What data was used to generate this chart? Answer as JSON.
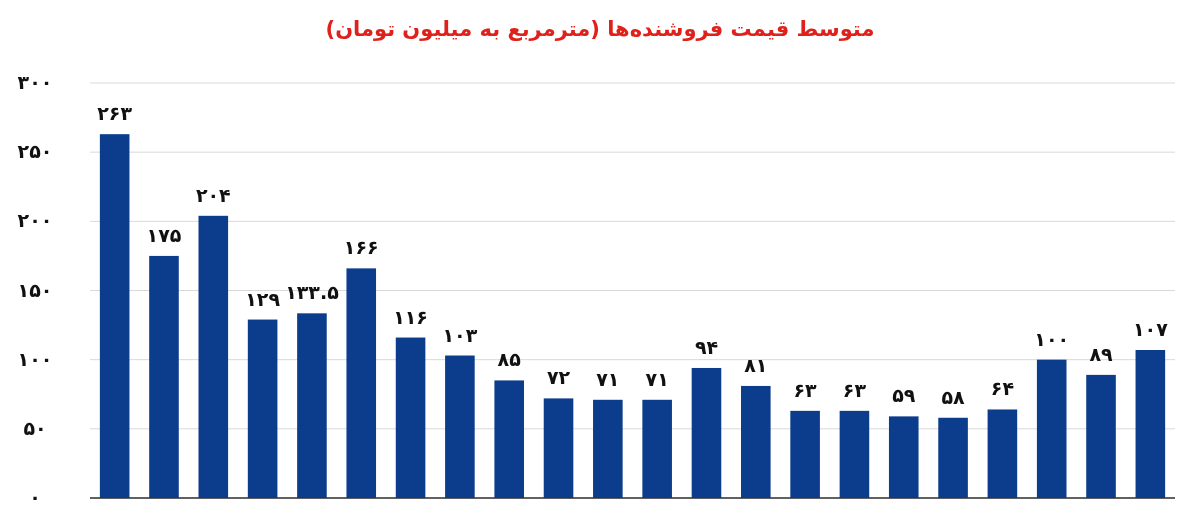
{
  "chart_data": {
    "type": "bar",
    "title": "متوسط قیمت فروشنده‌ها (مترمربع به میلیون تومان)",
    "categories": [
      null,
      null,
      null,
      null,
      null,
      null,
      null,
      null,
      null,
      null,
      null,
      null,
      null,
      null,
      null,
      null,
      null,
      null,
      null,
      null,
      null,
      null
    ],
    "values": [
      263,
      175,
      204,
      129,
      133.5,
      166,
      116,
      103,
      85,
      72,
      71,
      71,
      94,
      81,
      63,
      63,
      59,
      58,
      64,
      100,
      89,
      107
    ],
    "value_labels": [
      "۲۶۳",
      "۱۷۵",
      "۲۰۴",
      "۱۲۹",
      "۱۳۳.۵",
      "۱۶۶",
      "۱۱۶",
      "۱۰۳",
      "۸۵",
      "۷۲",
      "۷۱",
      "۷۱",
      "۹۴",
      "۸۱",
      "۶۳",
      "۶۳",
      "۵۹",
      "۵۸",
      "۶۴",
      "۱۰۰",
      "۸۹",
      "۱۰۷"
    ],
    "color": "#0b3d8c",
    "ylim": [
      0,
      300
    ],
    "yticks": [
      {
        "value": 0,
        "label": "۰"
      },
      {
        "value": 50,
        "label": "۵۰"
      },
      {
        "value": 100,
        "label": "۱۰۰"
      },
      {
        "value": 150,
        "label": "۱۵۰"
      },
      {
        "value": 200,
        "label": "۲۰۰"
      },
      {
        "value": 250,
        "label": "۲۵۰"
      },
      {
        "value": 300,
        "label": "۳۰۰"
      }
    ],
    "grid": "y"
  }
}
